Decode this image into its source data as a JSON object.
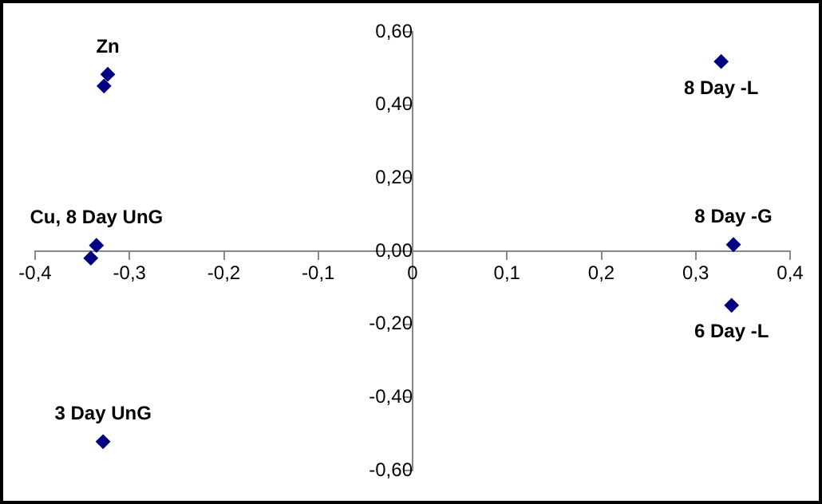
{
  "chart_data": {
    "type": "scatter",
    "marker": "diamond",
    "grid": false,
    "legend": false,
    "x": [
      -0.323,
      -0.327,
      -0.335,
      -0.341,
      -0.328,
      0.327,
      0.34,
      0.338
    ],
    "series": [
      {
        "color": "#000080",
        "values": [
          0.484,
          0.452,
          0.016,
          -0.019,
          -0.521,
          0.519,
          0.018,
          -0.148
        ]
      }
    ],
    "xlim": [
      -0.4,
      0.4
    ],
    "ylim": [
      -0.6,
      0.6
    ],
    "xticks": [
      {
        "value": -0.4,
        "label": "-0,4"
      },
      {
        "value": -0.3,
        "label": "-0,3"
      },
      {
        "value": -0.2,
        "label": "-0,2"
      },
      {
        "value": -0.1,
        "label": "-0,1"
      },
      0,
      {
        "value": 0.1,
        "label": "0,1"
      },
      {
        "value": 0.2,
        "label": "0,2"
      },
      {
        "value": 0.3,
        "label": "0,3"
      },
      {
        "value": 0.4,
        "label": "0,4"
      }
    ],
    "yticks": [
      {
        "value": -0.6,
        "label": "-0,60"
      },
      {
        "value": -0.4,
        "label": "-0,40"
      },
      {
        "value": -0.2,
        "label": "-0,20"
      },
      {
        "value": 0,
        "label": "0,00"
      },
      {
        "value": 0.2,
        "label": "0,20"
      },
      {
        "value": 0.4,
        "label": "0,40"
      },
      {
        "value": 0.6,
        "label": "0,60"
      }
    ],
    "annotations": [
      {
        "text": "Zn",
        "x": -0.323,
        "y": 0.484
      },
      {
        "text": "8 Day -L",
        "x": 0.327,
        "y": 0.519
      },
      {
        "text": "Cu, 8 Day UnG",
        "x": -0.335,
        "y": 0.016
      },
      {
        "text": "8 Day -G",
        "x": 0.34,
        "y": 0.018
      },
      {
        "text": "6 Day -L",
        "x": 0.338,
        "y": -0.148
      },
      {
        "text": "3 Day UnG",
        "x": -0.328,
        "y": -0.521
      }
    ]
  }
}
